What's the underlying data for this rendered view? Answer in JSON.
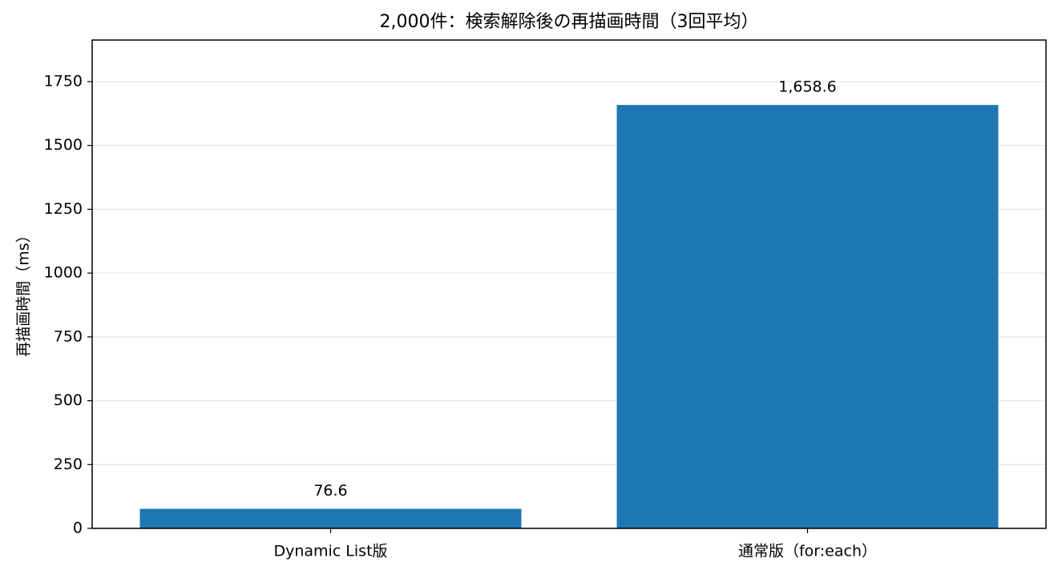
{
  "chart_data": {
    "type": "bar",
    "title": "2,000件：検索解除後の再描画時間（3回平均）",
    "y_label": "再描画時間（ms）",
    "categories": [
      "Dynamic List版",
      "通常版（for:each）"
    ],
    "values": [
      76.6,
      1658.6
    ],
    "value_labels": [
      "76.6",
      "1,658.6"
    ],
    "color": "#1f77b4",
    "ylim": [
      0,
      1913
    ],
    "yticks": [
      0,
      250,
      500,
      750,
      1000,
      1250,
      1500,
      1750
    ],
    "grid": true
  }
}
